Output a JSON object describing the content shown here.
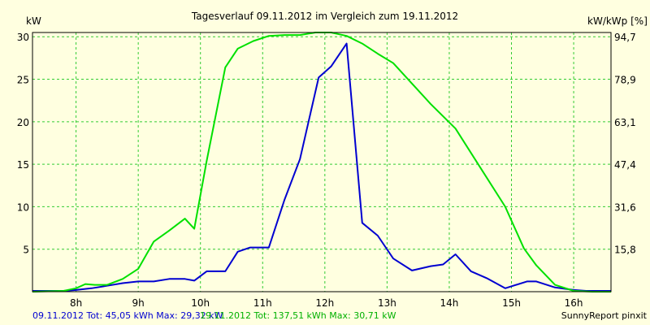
{
  "chart_data": {
    "type": "line",
    "title": "Tagesverlauf 09.11.2012 im Vergleich zum 19.11.2012",
    "ylabel_left": "kW",
    "ylabel_right": "kW/kWp [%]",
    "xlim": [
      7.3,
      16.6
    ],
    "ylim": [
      0,
      30.5
    ],
    "x_ticks": [
      {
        "value": 8,
        "label": "8h"
      },
      {
        "value": 9,
        "label": "9h"
      },
      {
        "value": 10,
        "label": "10h"
      },
      {
        "value": 11,
        "label": "11h"
      },
      {
        "value": 12,
        "label": "12h"
      },
      {
        "value": 13,
        "label": "13h"
      },
      {
        "value": 14,
        "label": "14h"
      },
      {
        "value": 15,
        "label": "15h"
      },
      {
        "value": 16,
        "label": "16h"
      }
    ],
    "y_ticks_left": [
      {
        "value": 5,
        "label": "5"
      },
      {
        "value": 10,
        "label": "10"
      },
      {
        "value": 15,
        "label": "15"
      },
      {
        "value": 20,
        "label": "20"
      },
      {
        "value": 25,
        "label": "25"
      },
      {
        "value": 30,
        "label": "30"
      }
    ],
    "y_ticks_right": [
      {
        "value": 5,
        "label": "15,8"
      },
      {
        "value": 10,
        "label": "31,6"
      },
      {
        "value": 15,
        "label": "47,4"
      },
      {
        "value": 20,
        "label": "63,1"
      },
      {
        "value": 25,
        "label": "78,9"
      },
      {
        "value": 30,
        "label": "94,7"
      }
    ],
    "series": [
      {
        "name": "09.11.2012",
        "legend": "09.11.2012 Tot: 45,05 kWh Max: 29,32 kW",
        "color": "#0000d0",
        "x": [
          7.3,
          7.8,
          8.0,
          8.25,
          8.5,
          8.75,
          9.0,
          9.25,
          9.5,
          9.75,
          9.9,
          10.1,
          10.4,
          10.6,
          10.8,
          11.1,
          11.35,
          11.6,
          11.9,
          12.1,
          12.35,
          12.6,
          12.85,
          13.1,
          13.4,
          13.7,
          13.9,
          14.1,
          14.35,
          14.6,
          14.9,
          15.25,
          15.4,
          15.7,
          16.0,
          16.2,
          16.6
        ],
        "y": [
          0.1,
          0.1,
          0.2,
          0.4,
          0.7,
          1.0,
          1.2,
          1.2,
          1.5,
          1.5,
          1.3,
          2.4,
          2.4,
          4.7,
          5.2,
          5.2,
          10.8,
          15.6,
          25.2,
          26.5,
          29.2,
          8.1,
          6.6,
          3.9,
          2.5,
          3.0,
          3.2,
          4.4,
          2.4,
          1.6,
          0.4,
          1.2,
          1.2,
          0.5,
          0.2,
          0.1,
          0.1
        ]
      },
      {
        "name": "19.11.2012",
        "legend": "19.11.2012 Tot: 137,51 kWh Max: 30,71 kW",
        "color": "#00e000",
        "x": [
          7.3,
          7.8,
          8.0,
          8.15,
          8.3,
          8.5,
          8.75,
          9.0,
          9.25,
          9.5,
          9.75,
          9.9,
          10.1,
          10.4,
          10.6,
          10.85,
          11.1,
          11.35,
          11.6,
          11.85,
          12.1,
          12.35,
          12.6,
          12.85,
          13.1,
          13.4,
          13.7,
          14.1,
          14.5,
          14.9,
          15.2,
          15.4,
          15.7,
          16.0,
          16.3,
          16.6
        ],
        "y": [
          0.0,
          0.1,
          0.4,
          0.9,
          0.8,
          0.8,
          1.5,
          2.7,
          5.9,
          7.2,
          8.6,
          7.4,
          15.4,
          26.4,
          28.6,
          29.5,
          30.1,
          30.2,
          30.2,
          30.5,
          30.5,
          30.1,
          29.2,
          28.0,
          26.9,
          24.5,
          22.1,
          19.2,
          14.6,
          10.0,
          5.1,
          3.1,
          0.8,
          0.1,
          0.0,
          0.0
        ]
      }
    ],
    "credit": "SunnyReport pinxit"
  }
}
